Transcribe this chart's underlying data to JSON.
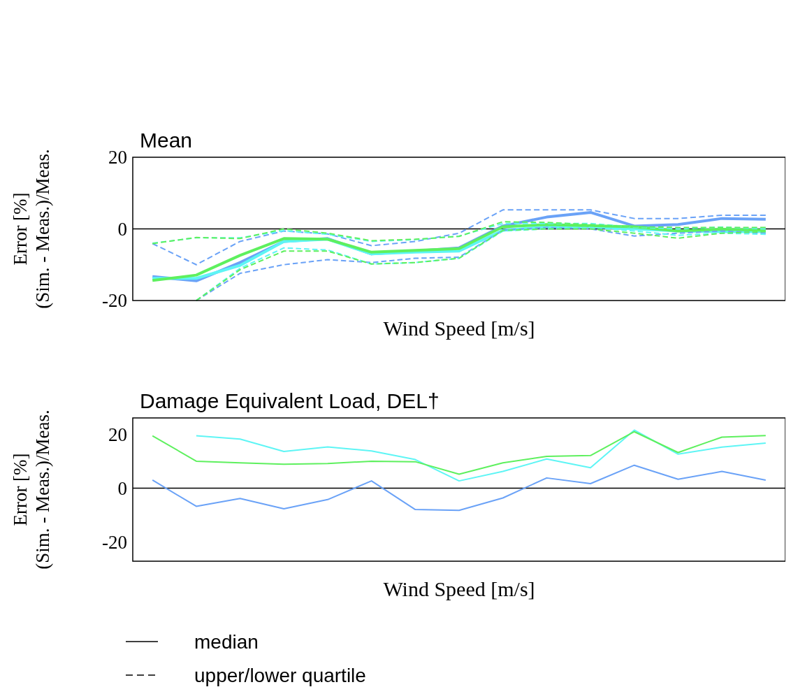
{
  "chart_data": [
    {
      "type": "line",
      "title": "Mean",
      "xlabel": "Wind Speed [m/s]",
      "ylabel": "Error [%]\n(Sim. - Meas.)/Meas.",
      "categories": [
        null,
        null,
        null,
        null,
        null,
        null,
        null,
        null,
        null,
        null,
        null,
        null,
        null,
        null,
        null
      ],
      "ylim": [
        -20,
        20
      ],
      "yticks": [
        -20,
        0,
        20
      ],
      "tick_labels": "y",
      "grid": false,
      "ref_lines": [
        {
          "axis": "y",
          "value": 0,
          "color": "#000000"
        }
      ],
      "series": [
        {
          "color": "#6aa2f7",
          "line_style": "solid",
          "values": [
            -13.3,
            -14.5,
            -9.4,
            -3.5,
            -2.7,
            -7,
            -6.2,
            -5.3,
            0.8,
            3.3,
            4.6,
            0.8,
            1.2,
            2.9,
            2.7
          ]
        },
        {
          "color": "#5ef5f5",
          "line_style": "solid",
          "values": [
            -13.8,
            -13.8,
            -10.2,
            -3.5,
            -2.9,
            -7,
            -6.5,
            -6.2,
            -0.4,
            0.6,
            0.6,
            0,
            -0.6,
            -0.8,
            -0.8
          ]
        },
        {
          "color": "#5ef05e",
          "line_style": "solid",
          "values": [
            -14.4,
            -12.9,
            -7.4,
            -2.7,
            -2.9,
            -6.5,
            -6,
            -5.5,
            0.6,
            1.2,
            0.9,
            0.6,
            -0.6,
            -0.1,
            -0.4
          ]
        },
        {
          "color": "#6aa2f7",
          "line_style": "dashed",
          "values": [
            -4.1,
            -10,
            -3.5,
            -0.6,
            -1.4,
            -4.7,
            -3.5,
            -1.2,
            5.3,
            5.3,
            5.3,
            2.9,
            2.9,
            3.8,
            3.8
          ]
        },
        {
          "color": "#6aa2f7",
          "line_style": "dashed",
          "values": [
            null,
            -20,
            -12.4,
            -10,
            -8.6,
            -9.4,
            -8.2,
            -7.9,
            -0.4,
            0.4,
            0,
            -2,
            -1.2,
            -0.6,
            -1.2
          ]
        },
        {
          "color": "#5ef5f5",
          "line_style": "dashed",
          "values": [
            -4,
            -2.5,
            -2.5,
            -0.5,
            -1.5,
            -3.5,
            -3,
            -2,
            1.5,
            1.5,
            1.5,
            0.5,
            0,
            0.5,
            0
          ]
        },
        {
          "color": "#5ef5f5",
          "line_style": "dashed",
          "values": [
            null,
            -20,
            -11,
            -5.3,
            -5.9,
            -9.8,
            -9.4,
            -8.2,
            -0.6,
            0,
            0.4,
            -0.6,
            -1.8,
            -1.2,
            -1.5
          ]
        },
        {
          "color": "#5ef05e",
          "line_style": "dashed",
          "values": [
            -4.1,
            -2.4,
            -2.7,
            0,
            -1.2,
            -3.3,
            -2.9,
            -2.1,
            2,
            1.8,
            1.2,
            0.6,
            0.4,
            0.4,
            0.4
          ]
        },
        {
          "color": "#5ef05e",
          "line_style": "dashed",
          "values": [
            null,
            -20,
            -11.4,
            -6.2,
            -6.2,
            -9.8,
            -9.4,
            -8.2,
            -0.4,
            0,
            0,
            -1.2,
            -2.6,
            -1.2,
            -0.8
          ]
        }
      ]
    },
    {
      "type": "line",
      "title": "Damage Equivalent Load, DEL†",
      "xlabel": "Wind Speed [m/s]",
      "ylabel": "Error [%]\n(Sim. - Meas.)/Meas.",
      "categories": [
        null,
        null,
        null,
        null,
        null,
        null,
        null,
        null,
        null,
        null,
        null,
        null,
        null,
        null,
        null
      ],
      "ylim": [
        -27,
        26
      ],
      "yticks": [
        -20,
        0,
        20
      ],
      "tick_labels": "y",
      "grid": false,
      "ref_lines": [
        {
          "axis": "y",
          "value": 0,
          "color": "#000000"
        }
      ],
      "annotations": [
        "median",
        "upper/lower quartile"
      ],
      "series": [
        {
          "color": "#6aa2f7",
          "line_style": "solid",
          "values": [
            3,
            -6.7,
            -3.8,
            -7.6,
            -4.2,
            2.7,
            -7.9,
            -8.2,
            -3.6,
            3.8,
            1.7,
            8.5,
            3.3,
            6.2,
            3
          ]
        },
        {
          "color": "#5ef5f5",
          "line_style": "solid",
          "values": [
            null,
            19.4,
            18.2,
            13.6,
            15.3,
            13.8,
            10.6,
            2.7,
            6.2,
            10.8,
            7.6,
            21.5,
            12.6,
            15.2,
            16.7
          ]
        },
        {
          "color": "#5ef05e",
          "line_style": "solid",
          "values": [
            19.4,
            10,
            9.4,
            8.9,
            9.1,
            10,
            9.8,
            5.2,
            9.4,
            11.8,
            12.1,
            20.9,
            13.2,
            18.9,
            19.5
          ]
        }
      ]
    }
  ]
}
